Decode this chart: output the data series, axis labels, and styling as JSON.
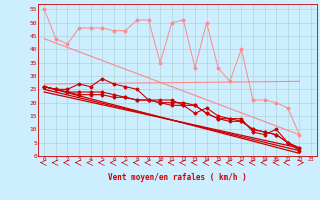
{
  "xlabel": "Vent moyen/en rafales ( km/h )",
  "xlim": [
    -0.5,
    23.5
  ],
  "ylim": [
    0,
    57
  ],
  "yticks": [
    0,
    5,
    10,
    15,
    20,
    25,
    30,
    35,
    40,
    45,
    50,
    55
  ],
  "xticks": [
    0,
    1,
    2,
    3,
    4,
    5,
    6,
    7,
    8,
    9,
    10,
    11,
    12,
    13,
    14,
    15,
    16,
    17,
    18,
    19,
    20,
    21,
    22,
    23
  ],
  "bg_color": "#cceeff",
  "grid_color": "#bbdddd",
  "line_color_dark": "#cc0000",
  "line_color_light": "#ff8888",
  "series_light_1": [
    55,
    44,
    42,
    48,
    48,
    48,
    47,
    47,
    51,
    51,
    35,
    50,
    51,
    33,
    50,
    33,
    28,
    40,
    21,
    21,
    20,
    18,
    8
  ],
  "series_light_trend_1": [
    [
      0,
      44
    ],
    [
      22,
      8
    ]
  ],
  "series_light_trend_2": [
    [
      0,
      27
    ],
    [
      22,
      28
    ]
  ],
  "series_dark_1": [
    26,
    25,
    25,
    27,
    26,
    29,
    27,
    26,
    25,
    21,
    21,
    21,
    19,
    16,
    18,
    15,
    14,
    14,
    9,
    8,
    10,
    5,
    2
  ],
  "series_dark_trend_1": [
    [
      0,
      26
    ],
    [
      22,
      1
    ]
  ],
  "series_dark_2": [
    26,
    25,
    24,
    24,
    24,
    24,
    23,
    22,
    21,
    21,
    20,
    20,
    20,
    19,
    16,
    14,
    14,
    13,
    10,
    9,
    8,
    5,
    3
  ],
  "series_dark_trend_2": [
    [
      0,
      25
    ],
    [
      22,
      2
    ]
  ],
  "series_dark_3": [
    26,
    25,
    24,
    23,
    23,
    23,
    22,
    22,
    21,
    21,
    20,
    19,
    19,
    19,
    16,
    14,
    13,
    13,
    10,
    9,
    8,
    5,
    3
  ],
  "series_dark_trend_3": [
    [
      0,
      24
    ],
    [
      22,
      3
    ]
  ],
  "x_vals": [
    0,
    1,
    2,
    3,
    4,
    5,
    6,
    7,
    8,
    9,
    10,
    11,
    12,
    13,
    14,
    15,
    16,
    17,
    18,
    19,
    20,
    21,
    22
  ]
}
